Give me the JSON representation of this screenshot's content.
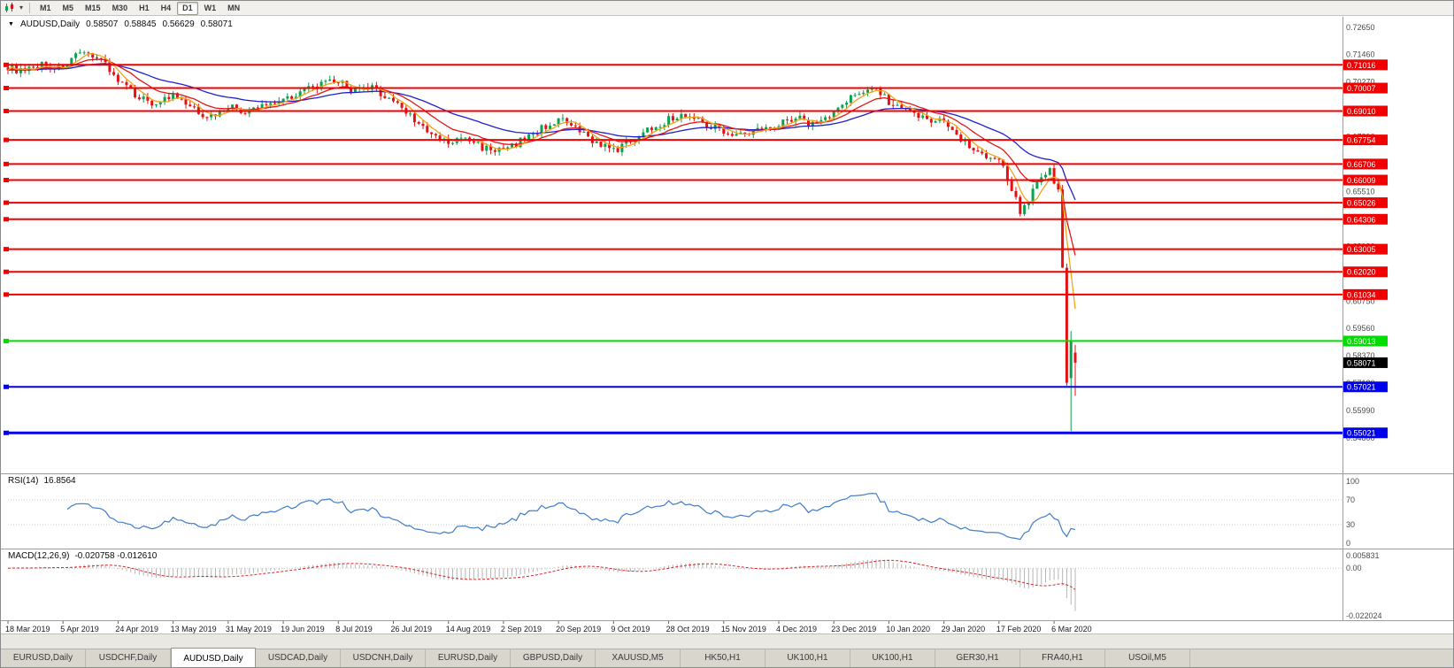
{
  "toolbar": {
    "caret_glyph": "▾",
    "timeframes": [
      "M1",
      "M5",
      "M15",
      "M30",
      "H1",
      "H4",
      "D1",
      "W1",
      "MN"
    ],
    "active_timeframe": "D1"
  },
  "chart_header": {
    "collapse_glyph": "▼",
    "symbol": "AUDUSD,Daily",
    "open": "0.58507",
    "high": "0.58845",
    "low": "0.56629",
    "close": "0.58071"
  },
  "indicator_panels": {
    "rsi": {
      "name": "RSI(14)",
      "value": "16.8564",
      "scale_labels": [
        "100",
        "70",
        "30",
        "0"
      ],
      "dotted_levels": [
        70,
        30
      ]
    },
    "macd": {
      "name": "MACD(12,26,9)",
      "values": "-0.020758 -0.012610",
      "scale_labels": [
        "0.005831",
        "0.00",
        "-0.022024"
      ],
      "dotted_levels": [
        0
      ]
    }
  },
  "price_axis": {
    "scale_labels": [
      "0.72650",
      "0.71460",
      "0.70270",
      "0.69080",
      "0.67890",
      "0.66700",
      "0.65510",
      "0.64320",
      "0.63130",
      "0.61940",
      "0.60750",
      "0.59560",
      "0.58370",
      "0.57180",
      "0.55990",
      "0.54800"
    ],
    "current_price_tag": "0.58071"
  },
  "time_axis": {
    "labels": [
      {
        "i": 0,
        "t": "18 Mar 2019"
      },
      {
        "i": 13,
        "t": "5 Apr 2019"
      },
      {
        "i": 26,
        "t": "24 Apr 2019"
      },
      {
        "i": 39,
        "t": "13 May 2019"
      },
      {
        "i": 52,
        "t": "31 May 2019"
      },
      {
        "i": 65,
        "t": "19 Jun 2019"
      },
      {
        "i": 78,
        "t": "8 Jul 2019"
      },
      {
        "i": 91,
        "t": "26 Jul 2019"
      },
      {
        "i": 104,
        "t": "14 Aug 2019"
      },
      {
        "i": 117,
        "t": "2 Sep 2019"
      },
      {
        "i": 130,
        "t": "20 Sep 2019"
      },
      {
        "i": 143,
        "t": "9 Oct 2019"
      },
      {
        "i": 156,
        "t": "28 Oct 2019"
      },
      {
        "i": 169,
        "t": "15 Nov 2019"
      },
      {
        "i": 182,
        "t": "4 Dec 2019"
      },
      {
        "i": 195,
        "t": "23 Dec 2019"
      },
      {
        "i": 208,
        "t": "10 Jan 2020"
      },
      {
        "i": 221,
        "t": "29 Jan 2020"
      },
      {
        "i": 234,
        "t": "17 Feb 2020"
      },
      {
        "i": 247,
        "t": "6 Mar 2020"
      }
    ]
  },
  "chart_data": {
    "type": "candlestick",
    "title": "AUDUSD,Daily",
    "y_range": [
      0.533,
      0.7295
    ],
    "visible_bars": 253,
    "close_keypoints": [
      [
        0,
        0.7095
      ],
      [
        4,
        0.7068
      ],
      [
        8,
        0.7105
      ],
      [
        12,
        0.7085
      ],
      [
        16,
        0.7135
      ],
      [
        20,
        0.715
      ],
      [
        23,
        0.711
      ],
      [
        26,
        0.703
      ],
      [
        30,
        0.6975
      ],
      [
        34,
        0.6935
      ],
      [
        39,
        0.6965
      ],
      [
        44,
        0.6905
      ],
      [
        48,
        0.6875
      ],
      [
        52,
        0.6925
      ],
      [
        56,
        0.689
      ],
      [
        60,
        0.6925
      ],
      [
        65,
        0.6955
      ],
      [
        70,
        0.699
      ],
      [
        74,
        0.7015
      ],
      [
        78,
        0.703
      ],
      [
        82,
        0.6985
      ],
      [
        86,
        0.7
      ],
      [
        91,
        0.6945
      ],
      [
        95,
        0.6885
      ],
      [
        99,
        0.6805
      ],
      [
        104,
        0.676
      ],
      [
        108,
        0.6785
      ],
      [
        112,
        0.6745
      ],
      [
        117,
        0.6725
      ],
      [
        121,
        0.677
      ],
      [
        126,
        0.6825
      ],
      [
        130,
        0.6865
      ],
      [
        134,
        0.682
      ],
      [
        139,
        0.6765
      ],
      [
        143,
        0.6725
      ],
      [
        147,
        0.6775
      ],
      [
        152,
        0.683
      ],
      [
        156,
        0.6865
      ],
      [
        160,
        0.6885
      ],
      [
        164,
        0.6855
      ],
      [
        169,
        0.6815
      ],
      [
        174,
        0.6795
      ],
      [
        178,
        0.6825
      ],
      [
        182,
        0.685
      ],
      [
        186,
        0.6875
      ],
      [
        190,
        0.6845
      ],
      [
        195,
        0.6895
      ],
      [
        199,
        0.6955
      ],
      [
        203,
        0.701
      ],
      [
        206,
        0.6985
      ],
      [
        208,
        0.6935
      ],
      [
        212,
        0.6895
      ],
      [
        216,
        0.6875
      ],
      [
        221,
        0.6855
      ],
      [
        225,
        0.6785
      ],
      [
        229,
        0.6725
      ],
      [
        234,
        0.669
      ],
      [
        236,
        0.661
      ],
      [
        239,
        0.647
      ],
      [
        241,
        0.652
      ],
      [
        244,
        0.662
      ],
      [
        246,
        0.664
      ],
      [
        247,
        0.66
      ],
      [
        248,
        0.656
      ],
      [
        249,
        0.622
      ],
      [
        250,
        0.572
      ]
    ],
    "last_candles": [
      {
        "o": 0.574,
        "h": 0.5945,
        "l": 0.551,
        "c": 0.59
      },
      {
        "o": 0.58507,
        "h": 0.58845,
        "l": 0.56629,
        "c": 0.58071
      }
    ],
    "noise_amp": 0.0017,
    "moving_averages": [
      {
        "period": 34,
        "method": "ema",
        "color": "#2020cc"
      },
      {
        "period": 13,
        "method": "ema",
        "color": "#e01818"
      },
      {
        "period": 5,
        "method": "sma",
        "color": "#f2a41a"
      }
    ],
    "hlines": [
      {
        "price": "0.71016",
        "color": "#f00000",
        "width": 2
      },
      {
        "price": "0.70007",
        "color": "#f00000",
        "width": 2
      },
      {
        "price": "0.69010",
        "color": "#f00000",
        "width": 2
      },
      {
        "price": "0.67754",
        "color": "#f00000",
        "width": 2
      },
      {
        "price": "0.66706",
        "color": "#f00000",
        "width": 2
      },
      {
        "price": "0.66009",
        "color": "#f00000",
        "width": 2
      },
      {
        "price": "0.65026",
        "color": "#f00000",
        "width": 2
      },
      {
        "price": "0.64306",
        "color": "#f00000",
        "width": 2
      },
      {
        "price": "0.63005",
        "color": "#f00000",
        "width": 2
      },
      {
        "price": "0.62020",
        "color": "#f00000",
        "width": 2
      },
      {
        "price": "0.61034",
        "color": "#f00000",
        "width": 2
      },
      {
        "price": "0.59013",
        "color": "#00dd00",
        "width": 2
      },
      {
        "price": "0.57021",
        "color": "#0000ee",
        "width": 2
      },
      {
        "price": "0.55021",
        "color": "#0000ee",
        "width": 3
      }
    ],
    "rsi": {
      "period": 14,
      "current": 16.8564
    },
    "macd": {
      "fast": 12,
      "slow": 26,
      "signal_period": 9,
      "macd_current": -0.020758,
      "signal_current": -0.01261
    }
  },
  "bottom_tabs": {
    "active_index": 2,
    "tabs": [
      "EURUSD,Daily",
      "USDCHF,Daily",
      "AUDUSD,Daily",
      "USDCAD,Daily",
      "USDCNH,Daily",
      "EURUSD,Daily",
      "GBPUSD,Daily",
      "XAUUSD,M5",
      "HK50,H1",
      "UK100,H1",
      "UK100,H1",
      "GER30,H1",
      "FRA40,H1",
      "USOil,M5"
    ]
  },
  "colors": {
    "candle_up": "#0ba14e",
    "candle_down": "#e31212",
    "rsi_line": "#3f7cc9",
    "macd_hist": "#b5b5b5",
    "macd_signal": "#e02020",
    "axis_text": "#4b4b4b",
    "date_text": "#1a1a1a",
    "tag_text": "#ffffff",
    "current_tag_bg": "#000000",
    "panel_border": "#9b9b9b",
    "level_dotted": "#c8c8c8"
  }
}
